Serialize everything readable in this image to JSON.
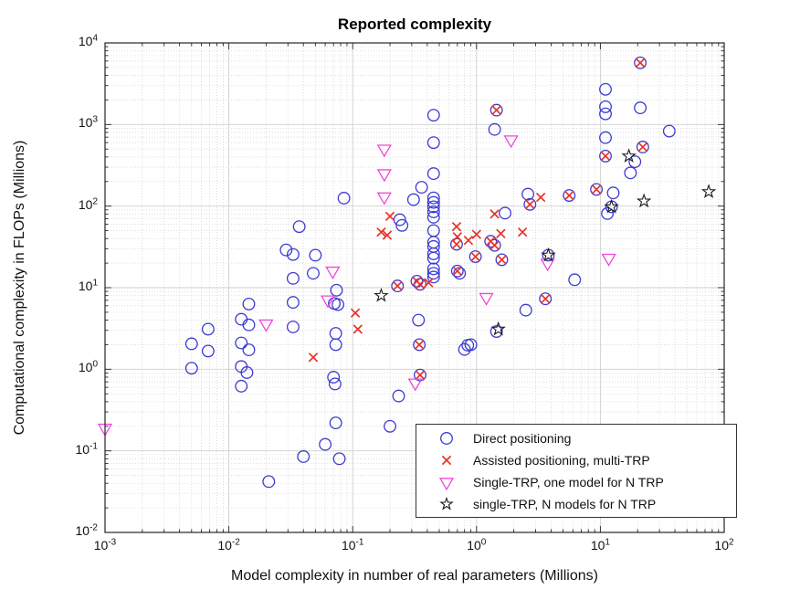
{
  "chart_data": {
    "type": "scatter",
    "title": "Reported complexity",
    "xlabel": "Model complexity in number of real parameters (Millions)",
    "ylabel": "Computational complexity in FLOPs (Millions)",
    "x_scale": "log",
    "y_scale": "log",
    "xlim": [
      0.001,
      100
    ],
    "ylim": [
      0.01,
      10000
    ],
    "x_tick_exponents": [
      -3,
      -2,
      -1,
      0,
      1,
      2
    ],
    "y_tick_exponents": [
      4,
      3,
      2,
      1,
      0,
      -1,
      -2
    ],
    "grid": true,
    "legend_position": "lower right",
    "axis_color": "#262626",
    "major_grid_color": "#cfcfcf",
    "minor_grid_color": "#d8d8d8",
    "series": [
      {
        "name": "Direct positioning",
        "key": "direct-positioning",
        "marker": "circle",
        "color": "#3b3bd3",
        "points": [
          [
            0.005,
            2.05
          ],
          [
            0.0068,
            3.1
          ],
          [
            0.0068,
            1.67
          ],
          [
            0.005,
            1.03
          ],
          [
            0.0145,
            6.3
          ],
          [
            0.0126,
            4.1
          ],
          [
            0.0145,
            3.5
          ],
          [
            0.0126,
            2.1
          ],
          [
            0.0145,
            1.73
          ],
          [
            0.0126,
            1.08
          ],
          [
            0.014,
            0.91
          ],
          [
            0.0126,
            0.62
          ],
          [
            0.021,
            0.042
          ],
          [
            0.04,
            0.085
          ],
          [
            0.06,
            0.12
          ],
          [
            0.078,
            0.08
          ],
          [
            0.073,
            0.22
          ],
          [
            0.2,
            0.2
          ],
          [
            0.235,
            0.47
          ],
          [
            0.07,
            0.8
          ],
          [
            0.072,
            0.66
          ],
          [
            0.037,
            56
          ],
          [
            0.029,
            29
          ],
          [
            0.033,
            25.5
          ],
          [
            0.05,
            25
          ],
          [
            0.048,
            15
          ],
          [
            0.033,
            13
          ],
          [
            0.033,
            6.6
          ],
          [
            0.033,
            3.3
          ],
          [
            0.074,
            9.3
          ],
          [
            0.071,
            6.4
          ],
          [
            0.076,
            6.2
          ],
          [
            0.073,
            2.75
          ],
          [
            0.073,
            2.0
          ],
          [
            0.085,
            125
          ],
          [
            0.24,
            68
          ],
          [
            0.25,
            58
          ],
          [
            0.31,
            120
          ],
          [
            0.36,
            170
          ],
          [
            0.34,
            4
          ],
          [
            0.345,
            2
          ],
          [
            0.35,
            0.85
          ],
          [
            0.45,
            1300
          ],
          [
            0.45,
            600
          ],
          [
            0.45,
            250
          ],
          [
            0.45,
            126
          ],
          [
            0.45,
            111
          ],
          [
            0.45,
            98
          ],
          [
            0.45,
            85
          ],
          [
            0.45,
            73
          ],
          [
            0.45,
            50
          ],
          [
            0.45,
            36
          ],
          [
            0.45,
            32
          ],
          [
            0.45,
            26
          ],
          [
            0.45,
            23
          ],
          [
            0.45,
            17
          ],
          [
            0.45,
            15
          ],
          [
            0.45,
            13.5
          ],
          [
            0.35,
            11
          ],
          [
            0.33,
            12
          ],
          [
            0.23,
            10.5
          ],
          [
            0.69,
            34
          ],
          [
            0.7,
            16
          ],
          [
            0.73,
            15
          ],
          [
            0.98,
            24
          ],
          [
            1.3,
            37
          ],
          [
            1.4,
            33
          ],
          [
            1.6,
            22
          ],
          [
            1.7,
            82
          ],
          [
            0.8,
            1.75
          ],
          [
            0.85,
            1.97
          ],
          [
            0.9,
            2.0
          ],
          [
            1.45,
            2.9
          ],
          [
            2.5,
            5.3
          ],
          [
            2.6,
            140
          ],
          [
            2.7,
            105
          ],
          [
            3.8,
            25
          ],
          [
            3.6,
            7.3
          ],
          [
            5.6,
            135
          ],
          [
            6.2,
            12.5
          ],
          [
            9.3,
            160
          ],
          [
            12.7,
            145
          ],
          [
            12.3,
            98
          ],
          [
            11.4,
            81
          ],
          [
            11,
            2700
          ],
          [
            11,
            1650
          ],
          [
            11,
            1350
          ],
          [
            11,
            690
          ],
          [
            11,
            410
          ],
          [
            21,
            5700
          ],
          [
            21,
            1600
          ],
          [
            22,
            530
          ],
          [
            19,
            350
          ],
          [
            17.5,
            255
          ],
          [
            36,
            830
          ],
          [
            1.45,
            1500
          ],
          [
            1.4,
            870
          ]
        ]
      },
      {
        "name": "Assisted positioning, multi-TRP",
        "key": "assisted-positioning-multi-trp",
        "marker": "x",
        "color": "#e63329",
        "points": [
          [
            0.048,
            1.4
          ],
          [
            0.105,
            4.9
          ],
          [
            0.11,
            3.1
          ],
          [
            0.17,
            48
          ],
          [
            0.19,
            44
          ],
          [
            0.2,
            75
          ],
          [
            0.23,
            10.5
          ],
          [
            0.33,
            12
          ],
          [
            0.35,
            11
          ],
          [
            0.41,
            11.5
          ],
          [
            0.345,
            2
          ],
          [
            0.35,
            0.85
          ],
          [
            0.69,
            56
          ],
          [
            0.7,
            42
          ],
          [
            0.86,
            38
          ],
          [
            0.69,
            34
          ],
          [
            0.7,
            16
          ],
          [
            0.98,
            24
          ],
          [
            1.0,
            45
          ],
          [
            1.3,
            37
          ],
          [
            1.4,
            33
          ],
          [
            1.57,
            46
          ],
          [
            2.35,
            48
          ],
          [
            1.6,
            22
          ],
          [
            1.4,
            80
          ],
          [
            2.7,
            105
          ],
          [
            3.3,
            128
          ],
          [
            3.6,
            7.3
          ],
          [
            5.6,
            135
          ],
          [
            9.3,
            160
          ],
          [
            11,
            410
          ],
          [
            22,
            530
          ],
          [
            21,
            5700
          ],
          [
            1.45,
            1500
          ]
        ]
      },
      {
        "name": "Single-TRP, one model for N TRP",
        "key": "single-trp-one-model",
        "marker": "triangle-down",
        "color": "#ef48d8",
        "points": [
          [
            0.001,
            0.19
          ],
          [
            0.02,
            3.6
          ],
          [
            0.063,
            7.1
          ],
          [
            0.069,
            16
          ],
          [
            0.18,
            500
          ],
          [
            0.18,
            250
          ],
          [
            0.18,
            130
          ],
          [
            0.32,
            0.68
          ],
          [
            1.2,
            7.6
          ],
          [
            1.9,
            650
          ],
          [
            3.75,
            20
          ],
          [
            11.7,
            23
          ]
        ]
      },
      {
        "name": "single-TRP, N models for N TRP",
        "key": "single-trp-n-models",
        "marker": "star",
        "color": "#1a1a1a",
        "points": [
          [
            0.17,
            8
          ],
          [
            1.5,
            3.1
          ],
          [
            3.8,
            25
          ],
          [
            12.3,
            98
          ],
          [
            22.5,
            115
          ],
          [
            17,
            410
          ],
          [
            75,
            150
          ]
        ]
      }
    ]
  }
}
